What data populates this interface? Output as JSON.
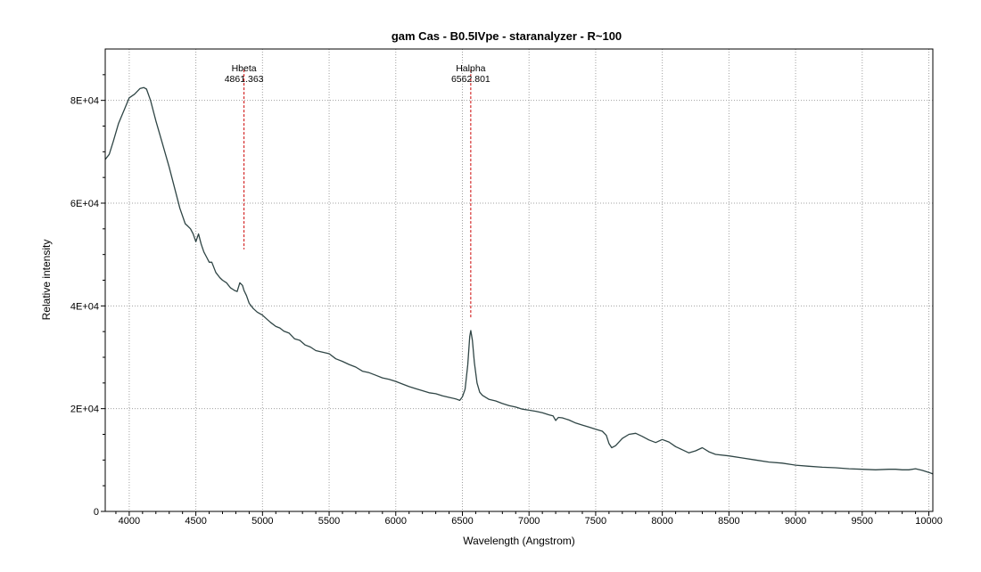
{
  "chart_data": {
    "type": "line",
    "title": "gam Cas - B0.5IVpe - staranalyzer - R~100",
    "xlabel": "Wavelength (Angstrom)",
    "ylabel": "Relative intensity",
    "xlim": [
      3820,
      10030
    ],
    "ylim": [
      0,
      90000
    ],
    "x_ticks": [
      4000,
      4500,
      5000,
      5500,
      6000,
      6500,
      7000,
      7500,
      8000,
      8500,
      9000,
      9500,
      10000
    ],
    "x_tick_labels": [
      "4000",
      "4500",
      "5000",
      "5500",
      "6000",
      "6500",
      "7000",
      "7500",
      "8000",
      "8500",
      "9000",
      "9500",
      "10000"
    ],
    "y_ticks": [
      0,
      20000,
      40000,
      60000,
      80000
    ],
    "y_tick_labels": [
      "0",
      "2E+04",
      "4E+04",
      "6E+04",
      "8E+04"
    ],
    "grid": true,
    "colors": {
      "series": "#2f4545",
      "annotation": "#cc0000",
      "grid": "#a0a0a0"
    },
    "series": [
      {
        "x": [
          3820,
          3850,
          3880,
          3920,
          3960,
          4000,
          4040,
          4080,
          4110,
          4130,
          4160,
          4200,
          4250,
          4300,
          4340,
          4380,
          4420,
          4440,
          4460,
          4480,
          4500,
          4520,
          4540,
          4560,
          4580,
          4600,
          4620,
          4650,
          4680,
          4700,
          4730,
          4760,
          4790,
          4810,
          4830,
          4850,
          4861,
          4880,
          4900,
          4930,
          4960,
          5000,
          5030,
          5060,
          5100,
          5130,
          5160,
          5200,
          5240,
          5280,
          5320,
          5360,
          5400,
          5450,
          5500,
          5550,
          5600,
          5650,
          5700,
          5750,
          5800,
          5850,
          5900,
          5950,
          6000,
          6050,
          6100,
          6150,
          6200,
          6250,
          6300,
          6350,
          6400,
          6450,
          6480,
          6500,
          6520,
          6540,
          6555,
          6563,
          6575,
          6590,
          6610,
          6630,
          6650,
          6700,
          6750,
          6800,
          6850,
          6900,
          6950,
          7000,
          7050,
          7100,
          7150,
          7180,
          7200,
          7220,
          7250,
          7300,
          7350,
          7400,
          7450,
          7500,
          7550,
          7580,
          7600,
          7620,
          7650,
          7700,
          7750,
          7800,
          7850,
          7900,
          7950,
          8000,
          8050,
          8100,
          8150,
          8200,
          8250,
          8300,
          8350,
          8400,
          8500,
          8600,
          8700,
          8800,
          8900,
          9000,
          9100,
          9200,
          9300,
          9400,
          9500,
          9600,
          9700,
          9750,
          9800,
          9850,
          9900,
          9950,
          10000,
          10030
        ],
        "y": [
          68500,
          69500,
          72000,
          75500,
          78000,
          80500,
          81200,
          82300,
          82500,
          82200,
          80000,
          76000,
          71500,
          67000,
          63000,
          59000,
          56000,
          55500,
          55000,
          54000,
          52500,
          54000,
          52000,
          50500,
          49500,
          48500,
          48500,
          46500,
          45500,
          45000,
          44500,
          43500,
          43000,
          42800,
          44500,
          44000,
          43000,
          42000,
          40500,
          39500,
          38800,
          38200,
          37500,
          36800,
          36000,
          35700,
          35100,
          34700,
          33600,
          33300,
          32400,
          32000,
          31300,
          31000,
          30700,
          29700,
          29200,
          28600,
          28100,
          27300,
          27000,
          26500,
          26000,
          25700,
          25300,
          24800,
          24300,
          23900,
          23500,
          23100,
          22900,
          22500,
          22200,
          21900,
          21600,
          22300,
          23800,
          28500,
          34000,
          35200,
          33300,
          29000,
          25000,
          23200,
          22600,
          21800,
          21500,
          21000,
          20600,
          20300,
          19900,
          19700,
          19500,
          19200,
          18800,
          18600,
          17700,
          18300,
          18200,
          17800,
          17200,
          16800,
          16400,
          16000,
          15600,
          14800,
          13200,
          12400,
          12800,
          14200,
          15000,
          15200,
          14600,
          13900,
          13400,
          14000,
          13500,
          12600,
          12000,
          11400,
          11800,
          12400,
          11600,
          11100,
          10800,
          10400,
          10000,
          9600,
          9400,
          9000,
          8800,
          8600,
          8500,
          8300,
          8200,
          8100,
          8200,
          8200,
          8100,
          8100,
          8300,
          8000,
          7600,
          7300
        ]
      }
    ],
    "annotations": [
      {
        "name": "Hbeta",
        "wavelength": "4861.363",
        "x": 4861.363,
        "y_top": 86000,
        "y_bottom": 51000
      },
      {
        "name": "Halpha",
        "wavelength": "6562.801",
        "x": 6562.801,
        "y_top": 86000,
        "y_bottom": 37500
      }
    ]
  }
}
